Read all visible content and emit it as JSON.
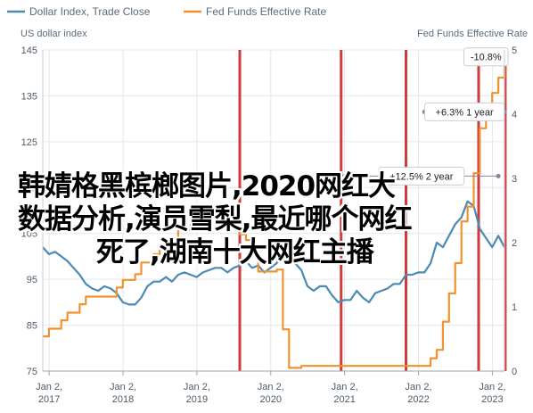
{
  "chart_data": {
    "type": "line",
    "legend": {
      "position": "top-left",
      "items": [
        {
          "label": "Dollar Index, Trade Close",
          "color": "#4a8ab3"
        },
        {
          "label": "Fed Funds Effective Rate",
          "color": "#f0922e"
        }
      ]
    },
    "left_axis": {
      "title": "US dollar index",
      "range": [
        75,
        145
      ],
      "ticks": [
        "145",
        "135",
        "125",
        "115",
        "105",
        "95",
        "85",
        "75"
      ]
    },
    "right_axis": {
      "title": "Fed Funds Effective Rate",
      "range": [
        0,
        5
      ],
      "ticks": [
        "5",
        "4",
        "3",
        "2",
        "1",
        "0"
      ]
    },
    "x_axis": {
      "range": [
        "2016-12",
        "2023-03"
      ],
      "ticks": [
        {
          "date": "2017-01-02",
          "line1": "Jan 2,",
          "line2": "2017"
        },
        {
          "date": "2018-01-02",
          "line1": "Jan 2,",
          "line2": "2018"
        },
        {
          "date": "2019-01-02",
          "line1": "Jan 2,",
          "line2": "2019"
        },
        {
          "date": "2020-01-02",
          "line1": "Jan 2,",
          "line2": "2020"
        },
        {
          "date": "2021-01-02",
          "line1": "Jan 2,",
          "line2": "2021"
        },
        {
          "date": "2022-01-02",
          "line1": "Jan 2,",
          "line2": "2022"
        },
        {
          "date": "2023-01-02",
          "line1": "Jan 2,",
          "line2": "2023"
        }
      ]
    },
    "grid": true,
    "series": [
      {
        "name": "Dollar Index, Trade Close",
        "axis": "left",
        "color": "#4a8ab3",
        "points": [
          [
            "2016-12",
            102
          ],
          [
            "2017-01",
            100.5
          ],
          [
            "2017-02",
            101
          ],
          [
            "2017-03",
            100
          ],
          [
            "2017-04",
            99
          ],
          [
            "2017-05",
            97.5
          ],
          [
            "2017-06",
            96
          ],
          [
            "2017-07",
            94
          ],
          [
            "2017-08",
            93
          ],
          [
            "2017-09",
            92.5
          ],
          [
            "2017-10",
            93.5
          ],
          [
            "2017-11",
            93
          ],
          [
            "2017-12",
            92
          ],
          [
            "2018-01",
            90
          ],
          [
            "2018-02",
            89.5
          ],
          [
            "2018-03",
            89.5
          ],
          [
            "2018-04",
            91
          ],
          [
            "2018-05",
            93.5
          ],
          [
            "2018-06",
            94.5
          ],
          [
            "2018-07",
            94.5
          ],
          [
            "2018-08",
            95.5
          ],
          [
            "2018-09",
            94.5
          ],
          [
            "2018-10",
            96
          ],
          [
            "2018-11",
            96.5
          ],
          [
            "2018-12",
            96
          ],
          [
            "2019-01",
            95.5
          ],
          [
            "2019-02",
            96.5
          ],
          [
            "2019-03",
            97
          ],
          [
            "2019-04",
            97.5
          ],
          [
            "2019-05",
            97.5
          ],
          [
            "2019-06",
            96.5
          ],
          [
            "2019-07",
            97.5
          ],
          [
            "2019-08",
            98
          ],
          [
            "2019-09",
            99
          ],
          [
            "2019-10",
            97.5
          ],
          [
            "2019-11",
            98
          ],
          [
            "2019-12",
            96.5
          ],
          [
            "2020-01",
            97.5
          ],
          [
            "2020-02",
            98.5
          ],
          [
            "2020-03",
            103
          ],
          [
            "2020-04",
            100
          ],
          [
            "2020-05",
            98.5
          ],
          [
            "2020-06",
            97
          ],
          [
            "2020-07",
            93.5
          ],
          [
            "2020-08",
            92.5
          ],
          [
            "2020-09",
            93.5
          ],
          [
            "2020-10",
            93.5
          ],
          [
            "2020-11",
            91.5
          ],
          [
            "2020-12",
            90
          ],
          [
            "2021-01",
            90.5
          ],
          [
            "2021-02",
            90.5
          ],
          [
            "2021-03",
            92.5
          ],
          [
            "2021-04",
            91
          ],
          [
            "2021-05",
            90
          ],
          [
            "2021-06",
            92
          ],
          [
            "2021-07",
            92.5
          ],
          [
            "2021-08",
            93
          ],
          [
            "2021-09",
            94
          ],
          [
            "2021-10",
            94
          ],
          [
            "2021-11",
            96
          ],
          [
            "2021-12",
            96
          ],
          [
            "2022-01",
            96.5
          ],
          [
            "2022-02",
            96.5
          ],
          [
            "2022-03",
            98.5
          ],
          [
            "2022-04",
            103
          ],
          [
            "2022-05",
            102
          ],
          [
            "2022-06",
            104.5
          ],
          [
            "2022-07",
            107
          ],
          [
            "2022-08",
            108.5
          ],
          [
            "2022-09",
            112
          ],
          [
            "2022-10",
            111
          ],
          [
            "2022-11",
            106
          ],
          [
            "2022-12",
            104
          ],
          [
            "2023-01",
            102
          ],
          [
            "2023-02",
            104.5
          ],
          [
            "2023-03",
            102
          ]
        ]
      },
      {
        "name": "Fed Funds Effective Rate",
        "axis": "right",
        "color": "#f0922e",
        "points": [
          [
            "2016-12",
            0.54
          ],
          [
            "2017-01",
            0.66
          ],
          [
            "2017-03",
            0.79
          ],
          [
            "2017-04",
            0.91
          ],
          [
            "2017-06",
            1.04
          ],
          [
            "2017-07",
            1.16
          ],
          [
            "2017-12",
            1.3
          ],
          [
            "2018-01",
            1.42
          ],
          [
            "2018-03",
            1.51
          ],
          [
            "2018-04",
            1.69
          ],
          [
            "2018-06",
            1.82
          ],
          [
            "2018-07",
            1.91
          ],
          [
            "2018-09",
            1.95
          ],
          [
            "2018-10",
            2.19
          ],
          [
            "2018-12",
            2.27
          ],
          [
            "2019-01",
            2.4
          ],
          [
            "2019-06",
            2.38
          ],
          [
            "2019-07",
            2.4
          ],
          [
            "2019-08",
            2.13
          ],
          [
            "2019-09",
            2.04
          ],
          [
            "2019-10",
            1.83
          ],
          [
            "2019-11",
            1.55
          ],
          [
            "2020-02",
            1.58
          ],
          [
            "2020-03",
            0.65
          ],
          [
            "2020-04",
            0.05
          ],
          [
            "2020-06",
            0.08
          ],
          [
            "2021-01",
            0.08
          ],
          [
            "2021-06",
            0.08
          ],
          [
            "2021-12",
            0.08
          ],
          [
            "2022-03",
            0.2
          ],
          [
            "2022-04",
            0.33
          ],
          [
            "2022-05",
            0.77
          ],
          [
            "2022-06",
            1.21
          ],
          [
            "2022-07",
            1.68
          ],
          [
            "2022-08",
            2.33
          ],
          [
            "2022-09",
            2.56
          ],
          [
            "2022-10",
            3.08
          ],
          [
            "2022-11",
            3.78
          ],
          [
            "2022-12",
            4.1
          ],
          [
            "2023-01",
            4.33
          ],
          [
            "2023-02",
            4.57
          ],
          [
            "2023-03",
            4.83
          ]
        ]
      }
    ],
    "event_lines": [
      {
        "date": "2019-08-01",
        "color": "#d03a3a"
      },
      {
        "date": "2020-12-15",
        "color": "#d03a3a"
      },
      {
        "date": "2021-11-01",
        "color": "#d03a3a"
      },
      {
        "date": "2022-10-25",
        "color": "#d03a3a"
      },
      {
        "date": "2023-03-05",
        "color": "#d03a3a"
      }
    ],
    "annotations": [
      {
        "text": "-10.8%",
        "start": "2022-09",
        "end": "2023-03",
        "y": 143.5
      },
      {
        "text": "+6.3% 1 year",
        "start": "2022-02",
        "end": "2023-03",
        "y": 131.5
      },
      {
        "text": "+12.5% 2 year",
        "start": "2021-01",
        "end": "2023-02",
        "y": 117.5
      }
    ]
  },
  "overlay": {
    "lines": [
      "韩婧格黑槟榔图片,2020网红大",
      "数据分析,演员雪梨,最近哪个网红",
      "死了,湖南十大网红主播"
    ]
  }
}
